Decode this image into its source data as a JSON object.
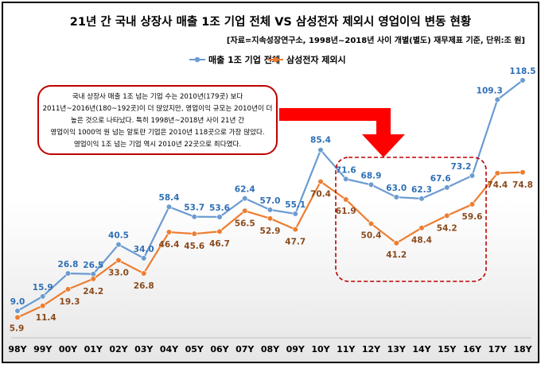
{
  "chart_data": {
    "type": "line",
    "title": "21년 간 국내 상장사 매출 1조 기업 전체 VS 삼성전자 제외시 영업이익 변동 현황",
    "subtitle": "[자료=지속성장연구소, 1998년~2018년 사이 개별(별도) 재무제표 기준, 단위:조 원]",
    "categories": [
      "98Y",
      "99Y",
      "00Y",
      "01Y",
      "02Y",
      "03Y",
      "04Y",
      "05Y",
      "06Y",
      "07Y",
      "08Y",
      "09Y",
      "10Y",
      "11Y",
      "12Y",
      "13Y",
      "14Y",
      "15Y",
      "16Y",
      "17Y",
      "18Y"
    ],
    "series": [
      {
        "name": "매출 1조 기업 전체",
        "color": "#6b9bd1",
        "label_color": "#2e6fb5",
        "values": [
          9.0,
          15.9,
          26.8,
          26.5,
          40.5,
          34.0,
          58.4,
          53.7,
          53.6,
          62.4,
          57.0,
          55.1,
          85.4,
          71.6,
          68.9,
          63.0,
          62.3,
          67.6,
          73.2,
          109.3,
          118.5
        ],
        "labels": [
          "9.0",
          "15.9",
          "26.8",
          "26.5",
          "40.5",
          "34.0",
          "58.4",
          "53.7",
          "53.6",
          "62.4",
          "57.0",
          "55.1",
          "85.4",
          "71.6",
          "68.9",
          "63.0",
          "62.3",
          "67.6",
          "73.2",
          "109.3",
          "118.5"
        ]
      },
      {
        "name": "삼성전자 제외시",
        "color": "#ed7d31",
        "label_color": "#8a4a1c",
        "values": [
          5.9,
          11.4,
          19.3,
          24.2,
          33.0,
          26.8,
          46.4,
          45.6,
          46.7,
          56.5,
          52.9,
          47.7,
          70.4,
          61.9,
          50.4,
          41.2,
          48.4,
          54.2,
          59.6,
          74.4,
          74.8
        ],
        "labels": [
          "5.9",
          "11.4",
          "19.3",
          "24.2",
          "33.0",
          "26.8",
          "46.4",
          "45.6",
          "46.7",
          "56.5",
          "52.9",
          "47.7",
          "70.4",
          "61.9",
          "50.4",
          "41.2",
          "48.4",
          "54.2",
          "59.6",
          "74.4",
          "74.8"
        ]
      }
    ],
    "ylim": [
      0,
      130
    ],
    "grid": false,
    "legend_position": "top-center",
    "annotation": {
      "lines": [
        "국내 상장사 매출 1조 넘는 기업 수는 2010년(179곳) 보다",
        "2011년~2016년(180~192곳)이 더 많았지만, 영업이익 규모는 2010년이 더",
        "높은 것으로 나타났다. 특히 1998년~2018년 사이 21년 간",
        "영업이익 1000억 원 넘는 알토란 기업은 2010년 118곳으로 가장 많았다.",
        "영업이익 1조 넘는 기업 역시 2010년 22곳으로 최다였다."
      ],
      "box_color": "#c00000",
      "arrow_color": "#ff0000",
      "highlight_color": "#c00000"
    }
  }
}
